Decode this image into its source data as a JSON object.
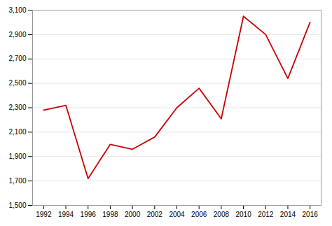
{
  "chart_data": {
    "type": "line",
    "x": [
      1992,
      1994,
      1996,
      1998,
      2000,
      2002,
      2004,
      2006,
      2008,
      2010,
      2012,
      2014,
      2016
    ],
    "values": [
      2280,
      2320,
      1720,
      2000,
      1960,
      2060,
      2300,
      2460,
      2210,
      3050,
      2900,
      2540,
      3000
    ],
    "color": "#cc0000",
    "xlim": [
      1991.0,
      2017.0
    ],
    "xticks": [
      1992,
      1994,
      1996,
      1998,
      2000,
      2002,
      2004,
      2006,
      2008,
      2010,
      2012,
      2014,
      2016
    ],
    "ylim": [
      1500,
      3100
    ],
    "yticks": [
      {
        "value": 1500,
        "label": "1,500"
      },
      {
        "value": 1700,
        "label": "1,700"
      },
      {
        "value": 1900,
        "label": "1,900"
      },
      {
        "value": 2100,
        "label": "2,100"
      },
      {
        "value": 2300,
        "label": "2,300"
      },
      {
        "value": 2500,
        "label": "2,500"
      },
      {
        "value": 2700,
        "label": "2,700"
      },
      {
        "value": 2900,
        "label": "2,900"
      },
      {
        "value": 3100,
        "label": "3,100"
      }
    ],
    "grid": true
  }
}
